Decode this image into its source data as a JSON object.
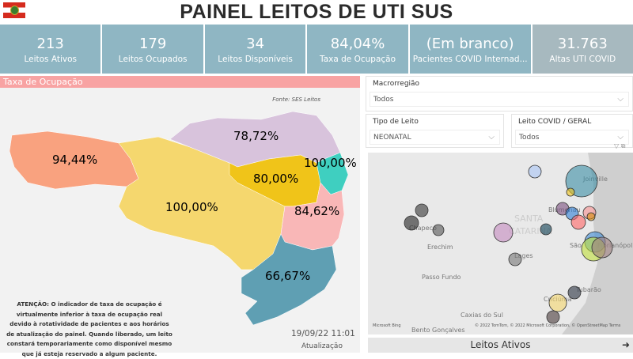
{
  "header": {
    "title": "PAINEL LEITOS DE UTI SUS",
    "flag_icon": "santa-catarina-flag"
  },
  "kpis": [
    {
      "value": "213",
      "label": "Leitos Ativos"
    },
    {
      "value": "179",
      "label": "Leitos Ocupados"
    },
    {
      "value": "34",
      "label": "Leitos Disponíveis"
    },
    {
      "value": "84,04%",
      "label": "Taxa de Ocupação"
    },
    {
      "value": "(Em branco)",
      "label": "Pacientes COVID Internad..."
    },
    {
      "value": "31.763",
      "label": "Altas UTI COVID"
    }
  ],
  "map_panel": {
    "title": "Taxa de Ocupação",
    "source": "Fonte: SES Leitos",
    "regions": [
      {
        "label": "94,44%",
        "color": "#f9a27f"
      },
      {
        "label": "100,00%",
        "color": "#f5d76e"
      },
      {
        "label": "78,72%",
        "color": "#d8c3dc"
      },
      {
        "label": "80,00%",
        "color": "#f0c419"
      },
      {
        "label": "100,00%",
        "color": "#3fcfc0"
      },
      {
        "label": "84,62%",
        "color": "#f9b7b7"
      },
      {
        "label": "66,67%",
        "color": "#5f9fb3"
      }
    ],
    "warning": "ATENÇÃO: O indicador de taxa de ocupação é virtualmente inferior à taxa de ocupação real devido à rotatividade de pacientes e aos horários de atualização do painel.  Quando liberado, um leito constará temporariamente como disponível mesmo que já esteja reservado a algum paciente.",
    "updated": "19/09/22 11:01",
    "updated_label": "Atualização"
  },
  "filters": {
    "macro": {
      "label": "Macrorregião",
      "value": "Todos"
    },
    "tipo": {
      "label": "Tipo de Leito",
      "value": "NEONATAL"
    },
    "covid": {
      "label": "Leito COVID / GERAL",
      "value": "Todos"
    }
  },
  "bubble_map": {
    "places": [
      "Joinville",
      "Blumenau",
      "Chapecó",
      "Erechim",
      "SANTA",
      "CATARINA",
      "São",
      "Florianópolis",
      "Lages",
      "Passo Fundo",
      "Tubarão",
      "Criciúma",
      "Caxias do Sul",
      "Bento Gonçalves"
    ],
    "attribution": "© 2022 TomTom, © 2022 Microsoft Corporation, © OpenStreetMap  Terms",
    "bing": "Microsoft Bing"
  },
  "button": {
    "label": "Leitos Ativos"
  }
}
